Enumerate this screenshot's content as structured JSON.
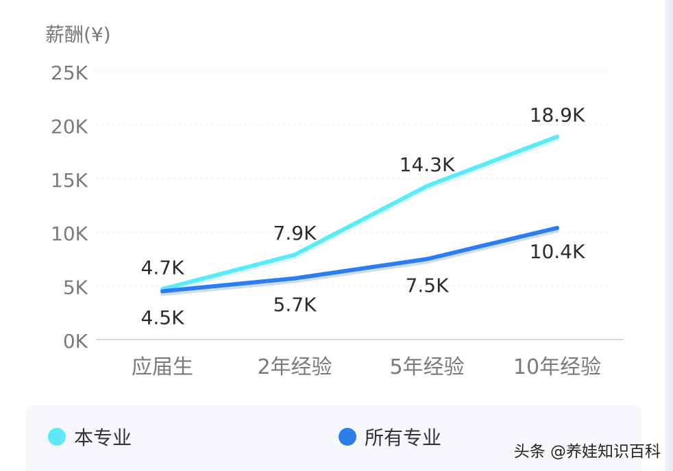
{
  "chart_data": {
    "type": "line",
    "ylabel": "薪酬(¥)",
    "categories": [
      "应届生",
      "2年经验",
      "5年经验",
      "10年经验"
    ],
    "y_ticks": [
      "0K",
      "5K",
      "10K",
      "15K",
      "20K",
      "25K"
    ],
    "ylim": [
      0,
      25
    ],
    "y_unit": "K",
    "grid": true,
    "legend_position": "bottom",
    "series": [
      {
        "name": "本专业",
        "values": [
          4.7,
          7.9,
          14.3,
          18.9
        ],
        "labels": [
          "4.7K",
          "7.9K",
          "14.3K",
          "18.9K"
        ],
        "color": "#5ee9f5"
      },
      {
        "name": "所有专业",
        "values": [
          4.5,
          5.7,
          7.5,
          10.4
        ],
        "labels": [
          "4.5K",
          "5.7K",
          "7.5K",
          "10.4K"
        ],
        "color": "#2f7de8"
      }
    ]
  },
  "legend": {
    "items": [
      {
        "label": "本专业",
        "color": "#5ee9f5"
      },
      {
        "label": "所有专业",
        "color": "#2f7de8"
      }
    ]
  },
  "watermark": "头条 @养娃知识百科"
}
